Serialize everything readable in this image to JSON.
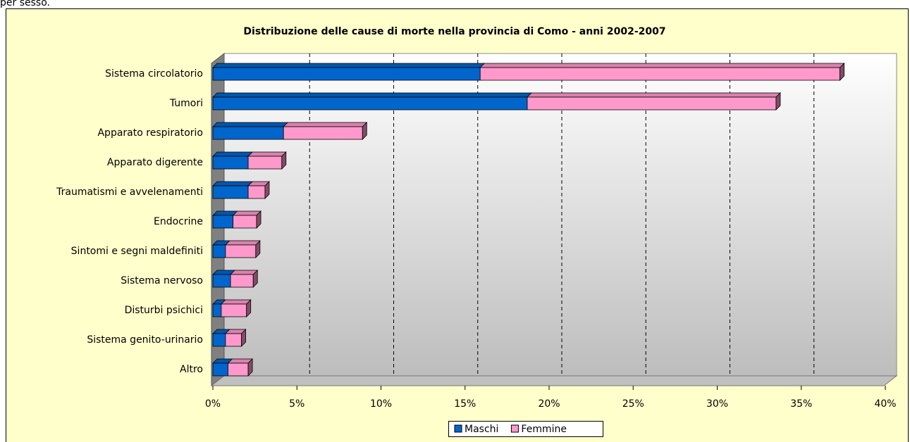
{
  "caption": "per sesso.",
  "chart_data": {
    "type": "bar",
    "orientation": "horizontal",
    "stacked": true,
    "title": "Distribuzione delle cause di morte nella provincia di Como - anni 2002-2007",
    "categories": [
      "Sistema circolatorio",
      "Tumori",
      "Apparato respiratorio",
      "Apparato digerente",
      "Traumatismi e avvelenamenti",
      "Endocrine",
      "Sintomi e segni maldefiniti",
      "Sistema nervoso",
      "Disturbi psichici",
      "Sistema genito-urinario",
      "Altro"
    ],
    "series": [
      {
        "name": "Maschi",
        "color": "#0066cc",
        "values": [
          15.9,
          18.7,
          4.2,
          2.1,
          2.1,
          1.2,
          0.75,
          1.05,
          0.5,
          0.75,
          0.9
        ]
      },
      {
        "name": "Femmine",
        "color": "#ff99cc",
        "values": [
          21.4,
          14.8,
          4.7,
          2.0,
          1.0,
          1.4,
          1.8,
          1.35,
          1.5,
          0.95,
          1.2
        ]
      }
    ],
    "xlim": [
      0,
      40
    ],
    "xticks": [
      {
        "value": 0,
        "label": "0%"
      },
      {
        "value": 5,
        "label": "5%"
      },
      {
        "value": 10,
        "label": "10%"
      },
      {
        "value": 15,
        "label": "15%"
      },
      {
        "value": 20,
        "label": "20%"
      },
      {
        "value": 25,
        "label": "25%"
      },
      {
        "value": 30,
        "label": "30%"
      },
      {
        "value": 35,
        "label": "35%"
      },
      {
        "value": 40,
        "label": "40%"
      }
    ],
    "grid": true,
    "legend": "bottom"
  }
}
